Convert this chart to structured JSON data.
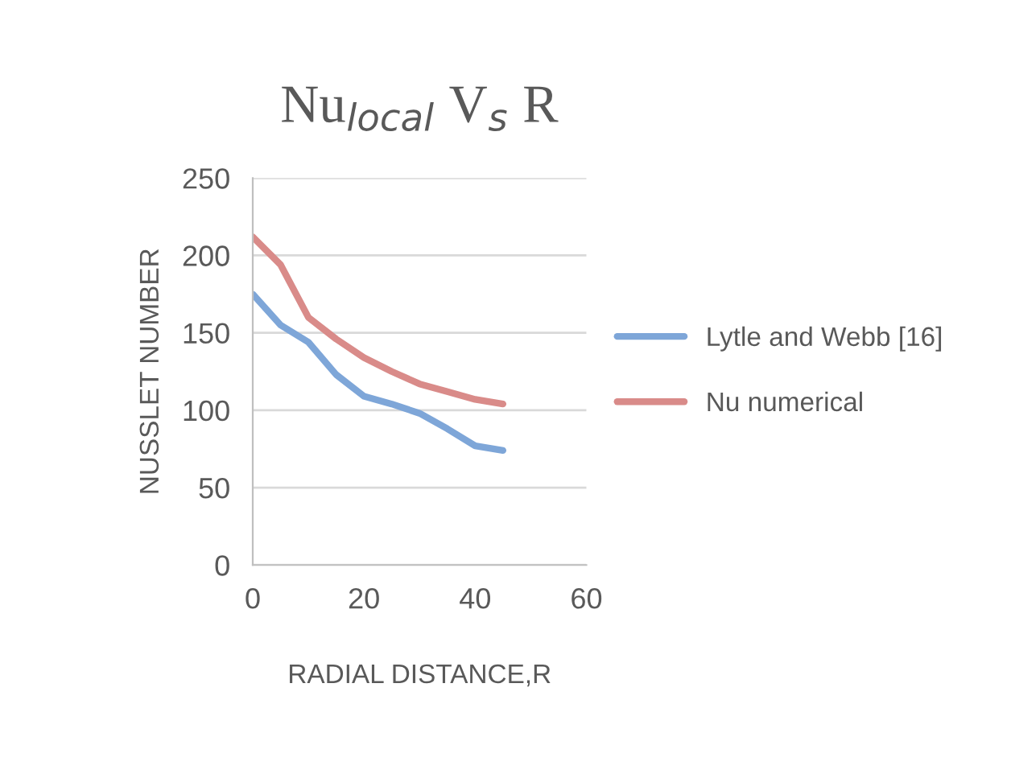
{
  "chart_data": {
    "type": "line",
    "title": "Nu$_{local}$ V$_{s}$ R",
    "xlabel": "RADIAL DISTANCE,R",
    "ylabel": "NUSSLET NUMBER",
    "x": [
      0,
      5,
      10,
      15,
      20,
      25,
      30,
      35,
      40,
      45
    ],
    "series": [
      {
        "name": "Lytle and Webb [16]",
        "color": "#7ea6d8",
        "values": [
          175,
          155,
          144,
          123,
          109,
          104,
          98,
          88,
          77,
          74
        ]
      },
      {
        "name": "Nu numerical",
        "color": "#d98b89",
        "values": [
          212,
          194,
          160,
          146,
          134,
          125,
          117,
          112,
          107,
          104
        ]
      }
    ],
    "xlim": [
      0,
      60
    ],
    "xticks": [
      0,
      20,
      40,
      60
    ],
    "ylim": [
      0,
      250
    ],
    "yticks": [
      0,
      50,
      100,
      150,
      200,
      250
    ],
    "grid": "y",
    "legend": "right",
    "marker": "none",
    "line_style": "solid"
  }
}
